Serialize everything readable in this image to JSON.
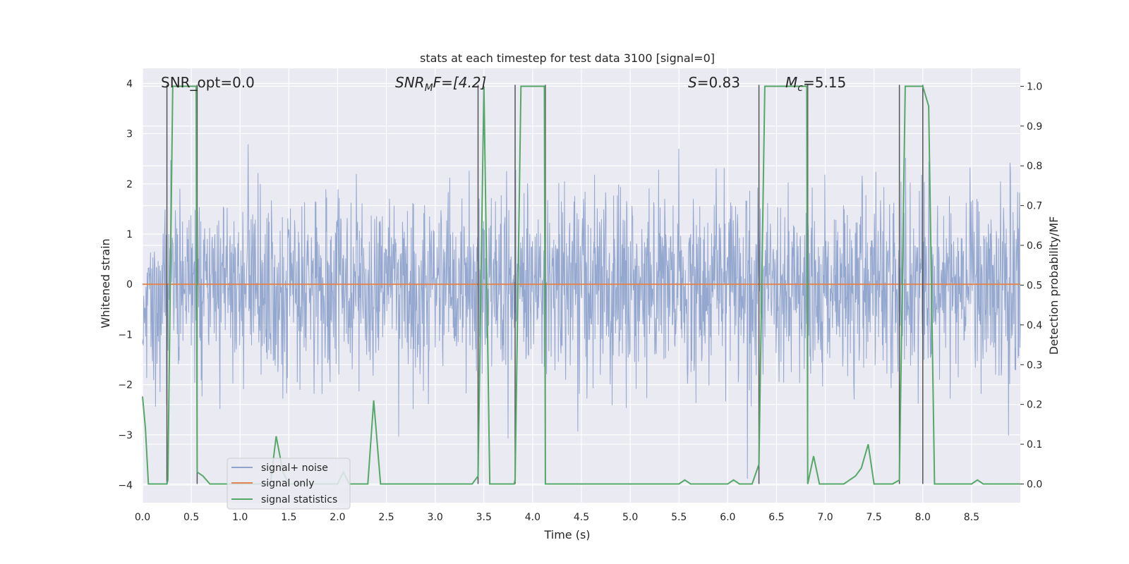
{
  "colors": {
    "plot_bg": "#eaeaf2",
    "grid": "#ffffff",
    "noise": "#8fa3cc",
    "signal_only": "#dd8452",
    "stat": "#55a868",
    "vline": "#555555"
  },
  "chart_data": {
    "type": "line",
    "title": "stats at each timestep for test data 3100 [signal=0]",
    "xlabel": "Time (s)",
    "ylabel": "Whitened strain",
    "y2label": "Detection probability/MF",
    "xlim": [
      0,
      9
    ],
    "ylim": [
      -4.35,
      4.3
    ],
    "y2lim": [
      -0.047,
      1.045
    ],
    "xticks": [
      "0.0",
      "0.5",
      "1.0",
      "1.5",
      "2.0",
      "2.5",
      "3.0",
      "3.5",
      "4.0",
      "4.5",
      "5.0",
      "5.5",
      "6.0",
      "6.5",
      "7.0",
      "7.5",
      "8.0",
      "8.5"
    ],
    "yticks": [
      "4",
      "3",
      "2",
      "1",
      "0",
      "−1",
      "−2",
      "−3",
      "−4"
    ],
    "y2ticks": [
      "1.0",
      "0.9",
      "0.8",
      "0.7",
      "0.6",
      "0.5",
      "0.4",
      "0.3",
      "0.2",
      "0.1",
      "0.0"
    ],
    "grid": true,
    "legend_position": "lower-left",
    "legend": [
      "signal+ noise",
      "signal only",
      "signal statistics"
    ],
    "annotations": {
      "snr_opt": "SNR_opt=0.0",
      "snr_mf_main": "SNR",
      "snr_mf_sub": "M",
      "snr_mf_rest": "F=[4.2]",
      "s_main": "S",
      "s_rest": "=0.83",
      "mc_main": "M",
      "mc_sub": "c",
      "mc_rest": "=5.15"
    },
    "vertical_lines_x": [
      0.25,
      0.56,
      3.44,
      3.82,
      4.13,
      6.32,
      6.82,
      7.76,
      8.0
    ],
    "signal_only_value": 0,
    "series": [
      {
        "name": "signal+ noise",
        "noise_std": 0.95,
        "seed": 3100,
        "n_samples": 2304
      },
      {
        "name": "signal only",
        "x": [
          0,
          9
        ],
        "y": [
          0,
          0
        ]
      },
      {
        "name": "signal statistics",
        "x": [
          0.0,
          0.03,
          0.06,
          0.25,
          0.26,
          0.31,
          0.55,
          0.56,
          0.62,
          0.69,
          0.76,
          0.88,
          0.94,
          1.31,
          1.37,
          1.44,
          1.5,
          2.0,
          2.06,
          2.12,
          2.31,
          2.37,
          2.44,
          2.5,
          3.38,
          3.44,
          3.5,
          3.56,
          3.63,
          3.81,
          3.82,
          3.88,
          4.12,
          4.13,
          4.25,
          4.31,
          5.5,
          5.56,
          5.62,
          6.0,
          6.06,
          6.12,
          6.25,
          6.32,
          6.38,
          6.81,
          6.82,
          6.88,
          6.94,
          7.19,
          7.25,
          7.31,
          7.37,
          7.44,
          7.5,
          7.56,
          7.69,
          7.76,
          7.82,
          8.0,
          8.06,
          8.12,
          8.19,
          8.5,
          8.56,
          8.62,
          9.0
        ],
        "y": [
          0.22,
          0.14,
          0.0,
          0.0,
          0.01,
          1.0,
          1.0,
          0.03,
          0.02,
          0.0,
          0.0,
          0.0,
          0.0,
          0.0,
          0.12,
          0.03,
          0.0,
          0.0,
          0.03,
          0.0,
          0.0,
          0.21,
          0.0,
          0.0,
          0.0,
          0.02,
          1.0,
          0.0,
          0.0,
          0.0,
          0.01,
          1.0,
          1.0,
          0.0,
          0.0,
          0.0,
          0.0,
          0.01,
          0.0,
          0.0,
          0.01,
          0.0,
          0.0,
          0.05,
          1.0,
          1.0,
          0.0,
          0.07,
          0.0,
          0.0,
          0.01,
          0.02,
          0.04,
          0.1,
          0.0,
          0.0,
          0.0,
          0.01,
          1.0,
          1.0,
          0.95,
          0.0,
          0.0,
          0.0,
          0.01,
          0.0,
          0.0
        ]
      }
    ]
  }
}
